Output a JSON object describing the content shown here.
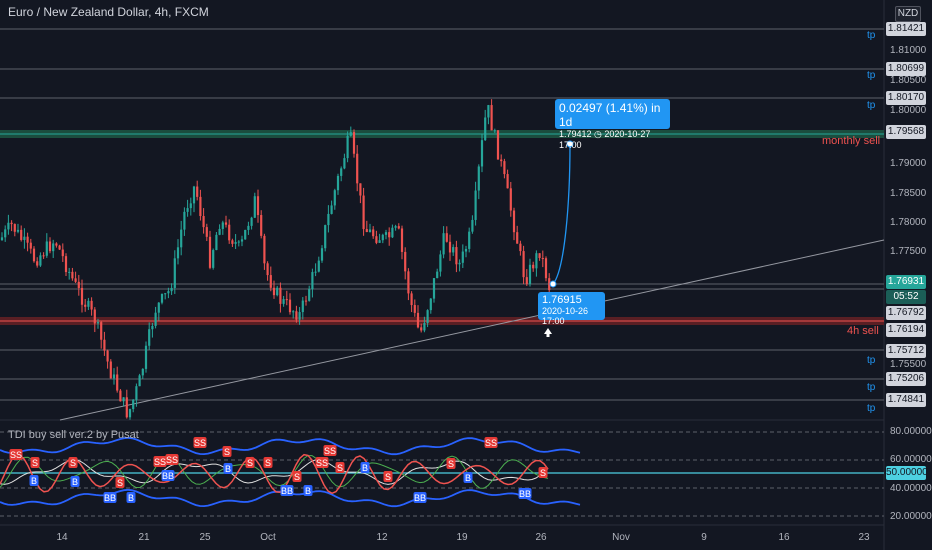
{
  "header": {
    "title": "Euro / New Zealand Dollar, 4h, FXCM",
    "currency": "NZD",
    "indicator": "TDI buy sell ver.2 by Pusat"
  },
  "price_axis": {
    "tags": [
      "1.81421",
      "1.80699",
      "1.80170",
      "1.79568",
      "1.76931",
      "05:52",
      "1.76792",
      "1.76194",
      "1.75712",
      "1.75206",
      "1.74841"
    ],
    "labels": [
      "1.81000",
      "1.80500",
      "1.80000",
      "1.79000",
      "1.78500",
      "1.78000",
      "1.77500",
      "1.75500"
    ]
  },
  "indicator_axis": {
    "labels": [
      "80.00000",
      "60.00000",
      "40.00000",
      "20.00000"
    ],
    "current": "50.00000"
  },
  "levels": {
    "tp_label": "tp",
    "monthly_sell": "monthly sell",
    "h4_sell": "4h sell"
  },
  "callouts": {
    "projection_title": "0.02497 (1.41%) in 1d",
    "projection_sub": "1.79412 ◷ 2020-10-27  17:00",
    "start_price": "1.76915",
    "start_time": "2020-10-26 17:00"
  },
  "time_axis": {
    "labels": [
      "14",
      "21",
      "25",
      "Oct",
      "12",
      "19",
      "26",
      "Nov",
      "9",
      "16",
      "23"
    ]
  },
  "signals": {
    "buy": "B",
    "sell": "S",
    "double_buy": "BB",
    "double_sell": "SS"
  },
  "colors": {
    "background": "#131722",
    "up": "#26a69a",
    "down": "#ef5350",
    "accent": "#2196f3"
  },
  "icons": {
    "arrow": "arrow-up-icon"
  }
}
